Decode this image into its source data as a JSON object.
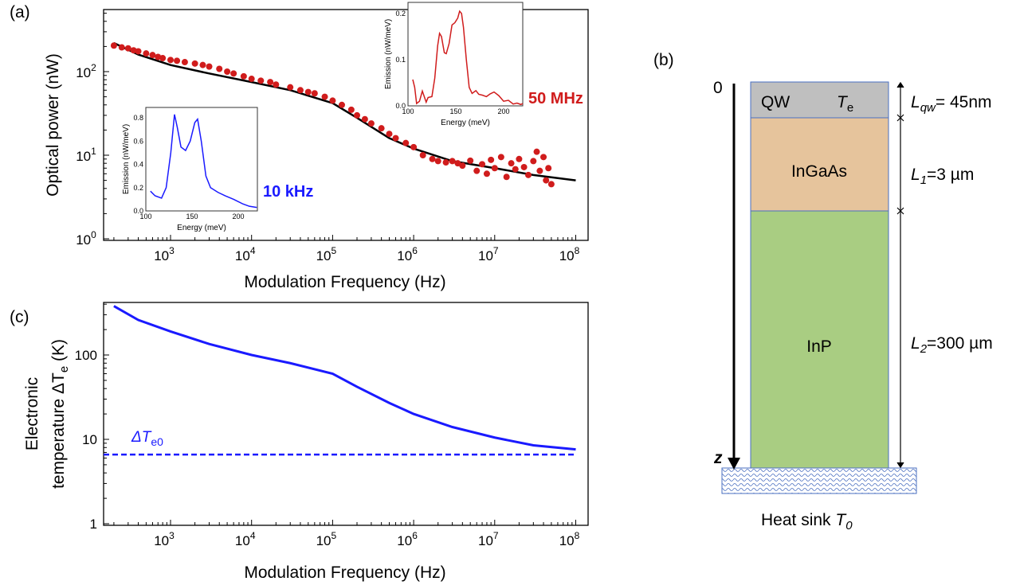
{
  "chart_data": [
    {
      "panel": "(a)",
      "type": "scatter",
      "xscale": "log",
      "yscale": "log",
      "xlim": [
        150,
        140000000
      ],
      "ylim": [
        1,
        560
      ],
      "xlabel": "Modulation Frequency (Hz)",
      "ylabel": "Optical power (nW)",
      "xticks": [
        {
          "b": "10",
          "e": "3",
          "v": 1000
        },
        {
          "b": "10",
          "e": "4",
          "v": 10000
        },
        {
          "b": "10",
          "e": "5",
          "v": 100000
        },
        {
          "b": "10",
          "e": "6",
          "v": 1000000
        },
        {
          "b": "10",
          "e": "7",
          "v": 10000000
        },
        {
          "b": "10",
          "e": "8",
          "v": 100000000
        }
      ],
      "yticks": [
        {
          "b": "10",
          "e": "0",
          "v": 1
        },
        {
          "b": "10",
          "e": "1",
          "v": 10
        },
        {
          "b": "10",
          "e": "2",
          "v": 100
        }
      ],
      "points_color": "#d01c1c",
      "fit_color": "#000000",
      "points": [
        [
          200,
          205
        ],
        [
          250,
          195
        ],
        [
          300,
          190
        ],
        [
          350,
          180
        ],
        [
          400,
          175
        ],
        [
          500,
          165
        ],
        [
          600,
          158
        ],
        [
          700,
          150
        ],
        [
          800,
          145
        ],
        [
          1000,
          138
        ],
        [
          1200,
          135
        ],
        [
          1500,
          130
        ],
        [
          2000,
          125
        ],
        [
          2500,
          120
        ],
        [
          3000,
          115
        ],
        [
          4000,
          108
        ],
        [
          5000,
          100
        ],
        [
          6000,
          95
        ],
        [
          8000,
          88
        ],
        [
          10000,
          82
        ],
        [
          13000,
          78
        ],
        [
          17000,
          75
        ],
        [
          20000,
          70
        ],
        [
          30000,
          65
        ],
        [
          40000,
          60
        ],
        [
          50000,
          57
        ],
        [
          60000,
          55
        ],
        [
          80000,
          50
        ],
        [
          100000,
          45
        ],
        [
          130000,
          40
        ],
        [
          170000,
          35
        ],
        [
          200000,
          30
        ],
        [
          250000,
          27
        ],
        [
          300000,
          24
        ],
        [
          400000,
          21
        ],
        [
          500000,
          18
        ],
        [
          600000,
          16
        ],
        [
          800000,
          14
        ],
        [
          1000000,
          12.5
        ],
        [
          1300000,
          10
        ],
        [
          1700000,
          9
        ],
        [
          2000000,
          8.5
        ],
        [
          2500000,
          8.2
        ],
        [
          3000000,
          8.5
        ],
        [
          3500000,
          8
        ],
        [
          4000000,
          7.5
        ],
        [
          5000000,
          8.6
        ],
        [
          6000000,
          6.5
        ],
        [
          7000000,
          7.8
        ],
        [
          8000000,
          6
        ],
        [
          9000000,
          8.8
        ],
        [
          10000000,
          7
        ],
        [
          12000000,
          9.5
        ],
        [
          14000000,
          5.5
        ],
        [
          16000000,
          8
        ],
        [
          18000000,
          6.8
        ],
        [
          20000000,
          9
        ],
        [
          23000000,
          7.2
        ],
        [
          26000000,
          5.8
        ],
        [
          30000000,
          8.5
        ],
        [
          33000000,
          11
        ],
        [
          36000000,
          6.5
        ],
        [
          40000000,
          9.5
        ],
        [
          43000000,
          5
        ],
        [
          46000000,
          7
        ],
        [
          50000000,
          4.5
        ]
      ],
      "fit": [
        [
          200,
          220
        ],
        [
          400,
          160
        ],
        [
          1000,
          120
        ],
        [
          3000,
          95
        ],
        [
          10000,
          75
        ],
        [
          30000,
          60
        ],
        [
          100000,
          42
        ],
        [
          200000,
          28
        ],
        [
          500000,
          16
        ],
        [
          1000000,
          12
        ],
        [
          3000000,
          8.5
        ],
        [
          10000000,
          7
        ],
        [
          30000000,
          5.8
        ],
        [
          100000000,
          5
        ]
      ],
      "insets": [
        {
          "label": "10 kHz",
          "color": "#1a1aff",
          "xlabel": "Energy (meV)",
          "ylabel": "Emission (nW/meV)",
          "xlim": [
            100,
            220.7
          ],
          "ylim": [
            0,
            0.89
          ],
          "xticks": [
            "100",
            "150",
            "200"
          ],
          "yticks": [
            "0.0",
            "0.2",
            "0.4",
            "0.6",
            "0.8"
          ],
          "ytickvals": [
            0,
            0.2,
            0.4,
            0.6,
            0.8
          ],
          "points": [
            [
              105,
              0.17
            ],
            [
              110,
              0.13
            ],
            [
              117,
              0.11
            ],
            [
              122,
              0.2
            ],
            [
              127,
              0.5
            ],
            [
              131,
              0.83
            ],
            [
              134,
              0.72
            ],
            [
              138,
              0.55
            ],
            [
              143,
              0.52
            ],
            [
              148,
              0.6
            ],
            [
              153,
              0.76
            ],
            [
              156,
              0.79
            ],
            [
              160,
              0.6
            ],
            [
              165,
              0.3
            ],
            [
              170,
              0.2
            ],
            [
              178,
              0.16
            ],
            [
              186,
              0.13
            ],
            [
              195,
              0.1
            ],
            [
              205,
              0.06
            ],
            [
              212,
              0.04
            ],
            [
              220,
              0.03
            ]
          ]
        },
        {
          "label": "50 MHz",
          "color": "#d01c1c",
          "xlabel": "Energy (meV)",
          "ylabel": "Emission (nW/meV)",
          "xlim": [
            100,
            220
          ],
          "ylim": [
            0,
            0.224
          ],
          "xticks": [
            "100",
            "150",
            "200"
          ],
          "yticks": [
            "0.0",
            "0.1",
            "0.2"
          ],
          "ytickvals": [
            0,
            0.1,
            0.2
          ],
          "points": [
            [
              105,
              0.057
            ],
            [
              107,
              0.04
            ],
            [
              109,
              0.005
            ],
            [
              112,
              0.01
            ],
            [
              115,
              0.032
            ],
            [
              117,
              0.02
            ],
            [
              119,
              0.008
            ],
            [
              121,
              0.018
            ],
            [
              125,
              0.02
            ],
            [
              128,
              0.06
            ],
            [
              131,
              0.13
            ],
            [
              133,
              0.157
            ],
            [
              135,
              0.15
            ],
            [
              138,
              0.115
            ],
            [
              140,
              0.113
            ],
            [
              143,
              0.135
            ],
            [
              146,
              0.175
            ],
            [
              149,
              0.18
            ],
            [
              152,
              0.19
            ],
            [
              154,
              0.205
            ],
            [
              156,
              0.2
            ],
            [
              158,
              0.17
            ],
            [
              161,
              0.1
            ],
            [
              164,
              0.04
            ],
            [
              167,
              0.027
            ],
            [
              171,
              0.033
            ],
            [
              174,
              0.025
            ],
            [
              178,
              0.023
            ],
            [
              182,
              0.02
            ],
            [
              186,
              0.026
            ],
            [
              190,
              0.03
            ],
            [
              195,
              0.022
            ],
            [
              200,
              0.01
            ],
            [
              205,
              0.012
            ],
            [
              210,
              0.004
            ],
            [
              214,
              0.006
            ],
            [
              218,
              0.003
            ],
            [
              220,
              0.005
            ]
          ]
        }
      ]
    },
    {
      "panel": "(c)",
      "type": "line",
      "xscale": "log",
      "yscale": "log",
      "xlim": [
        150,
        140000000
      ],
      "ylim": [
        1,
        430
      ],
      "xlabel": "Modulation Frequency (Hz)",
      "ylabel_line1": "Electronic",
      "ylabel_line2": "temperature ΔT",
      "ylabel_sub": "e",
      "ylabel_unit": " (K)",
      "yticks": [
        {
          "t": "1",
          "v": 1
        },
        {
          "t": "10",
          "v": 10
        },
        {
          "t": "100",
          "v": 100
        }
      ],
      "color": "#1a1aff",
      "curve": [
        [
          200,
          380
        ],
        [
          400,
          260
        ],
        [
          1000,
          190
        ],
        [
          3000,
          135
        ],
        [
          10000,
          100
        ],
        [
          30000,
          80
        ],
        [
          100000,
          60
        ],
        [
          200000,
          42
        ],
        [
          500000,
          27
        ],
        [
          1000000,
          20
        ],
        [
          3000000,
          14
        ],
        [
          10000000,
          10.5
        ],
        [
          30000000,
          8.5
        ],
        [
          100000000,
          7.6
        ]
      ],
      "dashed_level": 6.6,
      "dashed_label": "ΔT",
      "dashed_sub": "e0"
    }
  ],
  "diagram": {
    "panel": "(b)",
    "origin": "0",
    "axis": "z",
    "layers": [
      {
        "name": "QW",
        "sym": "T",
        "sub": "e",
        "color": "#bfbfbf",
        "dim": "L",
        "dimsub": "qw",
        "dimval": "= 45nm"
      },
      {
        "name": "InGaAs",
        "color": "#e6c49c",
        "dim": "L",
        "dimsub": "1",
        "dimval": "=3 µm"
      },
      {
        "name": "InP",
        "color": "#a9cd82",
        "dim": "L",
        "dimsub": "2",
        "dimval": "=300 µm"
      }
    ],
    "heatsink": "Heat sink ",
    "heatsink_sym": "T",
    "heatsink_sub": "0"
  }
}
